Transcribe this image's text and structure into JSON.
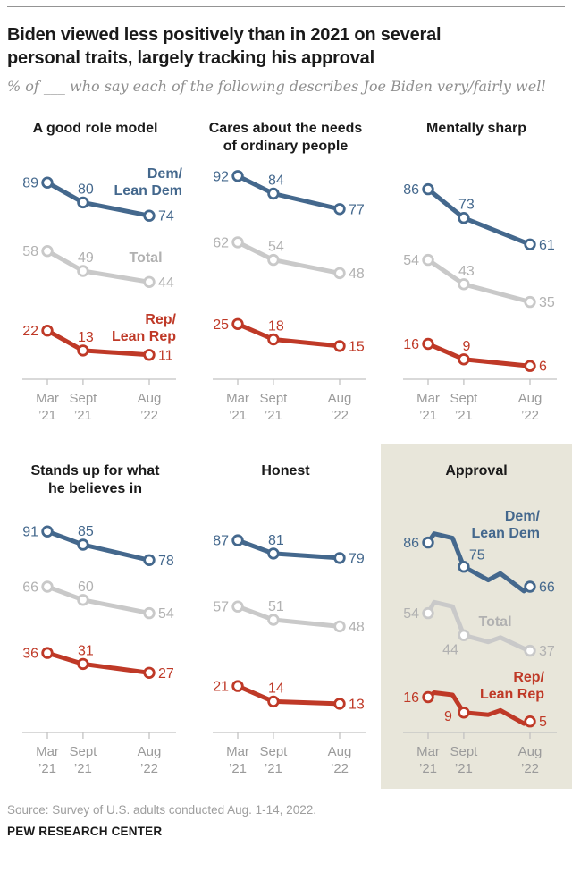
{
  "header": {
    "title": "Biden viewed less positively than in 2021 on several\npersonal traits, largely tracking his approval",
    "subtitle": "% of ___ who say each of the following describes Joe Biden very/fairly well"
  },
  "footer": {
    "source": "Source: Survey of U.S. adults conducted Aug. 1-14, 2022.",
    "brand": "PEW RESEARCH CENTER"
  },
  "colors": {
    "dem": {
      "line": "#44688d",
      "text": "#44688d"
    },
    "total": {
      "line": "#c9c9c9",
      "text": "#b1b1b1"
    },
    "rep": {
      "line": "#bf3927",
      "text": "#bf3927"
    },
    "axis": "#c2c2c2",
    "tick_text": "#9b9b9b",
    "approval_bg": "#e8e6da"
  },
  "legend": {
    "dem": [
      "Dem/",
      "Lean Dem"
    ],
    "total": [
      "Total"
    ],
    "rep": [
      "Rep/",
      "Lean Rep"
    ]
  },
  "axes": {
    "ylim": [
      0,
      100
    ],
    "x_categories": [
      "Mar '21",
      "Sept '21",
      "Aug '22"
    ],
    "x_ticks": [
      {
        "t": 0,
        "line1": "Mar",
        "line2": "’21"
      },
      {
        "t": 0.35,
        "line1": "Sept",
        "line2": "’21"
      },
      {
        "t": 1,
        "line1": "Aug",
        "line2": "’22"
      }
    ]
  },
  "chart_data": [
    {
      "type": "line",
      "title": "A good role model",
      "highlighted": false,
      "show_legend": true,
      "series": [
        {
          "name": "Dem/Lean Dem",
          "color_key": "dem",
          "points": [
            [
              0,
              89
            ],
            [
              0.35,
              80
            ],
            [
              1,
              74
            ]
          ],
          "labels": [
            {
              "i": 0,
              "pos": "left"
            },
            {
              "i": 1,
              "pos": "above"
            },
            {
              "i": 2,
              "pos": "right"
            }
          ]
        },
        {
          "name": "Total",
          "color_key": "total",
          "points": [
            [
              0,
              58
            ],
            [
              0.35,
              49
            ],
            [
              1,
              44
            ]
          ],
          "labels": [
            {
              "i": 0,
              "pos": "left"
            },
            {
              "i": 1,
              "pos": "above"
            },
            {
              "i": 2,
              "pos": "right"
            }
          ]
        },
        {
          "name": "Rep/Lean Rep",
          "color_key": "rep",
          "points": [
            [
              0,
              22
            ],
            [
              0.35,
              13
            ],
            [
              1,
              11
            ]
          ],
          "labels": [
            {
              "i": 0,
              "pos": "left"
            },
            {
              "i": 1,
              "pos": "above"
            },
            {
              "i": 2,
              "pos": "right"
            }
          ]
        }
      ]
    },
    {
      "type": "line",
      "title": "Cares about the needs\nof ordinary people",
      "highlighted": false,
      "show_legend": false,
      "series": [
        {
          "name": "Dem/Lean Dem",
          "color_key": "dem",
          "points": [
            [
              0,
              92
            ],
            [
              0.35,
              84
            ],
            [
              1,
              77
            ]
          ],
          "labels": [
            {
              "i": 0,
              "pos": "left"
            },
            {
              "i": 1,
              "pos": "above"
            },
            {
              "i": 2,
              "pos": "right"
            }
          ]
        },
        {
          "name": "Total",
          "color_key": "total",
          "points": [
            [
              0,
              62
            ],
            [
              0.35,
              54
            ],
            [
              1,
              48
            ]
          ],
          "labels": [
            {
              "i": 0,
              "pos": "left"
            },
            {
              "i": 1,
              "pos": "above"
            },
            {
              "i": 2,
              "pos": "right"
            }
          ]
        },
        {
          "name": "Rep/Lean Rep",
          "color_key": "rep",
          "points": [
            [
              0,
              25
            ],
            [
              0.35,
              18
            ],
            [
              1,
              15
            ]
          ],
          "labels": [
            {
              "i": 0,
              "pos": "left"
            },
            {
              "i": 1,
              "pos": "above"
            },
            {
              "i": 2,
              "pos": "right"
            }
          ]
        }
      ]
    },
    {
      "type": "line",
      "title": "Mentally sharp",
      "highlighted": false,
      "show_legend": false,
      "series": [
        {
          "name": "Dem/Lean Dem",
          "color_key": "dem",
          "points": [
            [
              0,
              86
            ],
            [
              0.35,
              73
            ],
            [
              1,
              61
            ]
          ],
          "labels": [
            {
              "i": 0,
              "pos": "left"
            },
            {
              "i": 1,
              "pos": "above"
            },
            {
              "i": 2,
              "pos": "right"
            }
          ]
        },
        {
          "name": "Total",
          "color_key": "total",
          "points": [
            [
              0,
              54
            ],
            [
              0.35,
              43
            ],
            [
              1,
              35
            ]
          ],
          "labels": [
            {
              "i": 0,
              "pos": "left"
            },
            {
              "i": 1,
              "pos": "above"
            },
            {
              "i": 2,
              "pos": "right"
            }
          ]
        },
        {
          "name": "Rep/Lean Rep",
          "color_key": "rep",
          "points": [
            [
              0,
              16
            ],
            [
              0.35,
              9
            ],
            [
              1,
              6
            ]
          ],
          "labels": [
            {
              "i": 0,
              "pos": "left"
            },
            {
              "i": 1,
              "pos": "above"
            },
            {
              "i": 2,
              "pos": "right"
            }
          ]
        }
      ]
    },
    {
      "type": "line",
      "title": "Stands up for what\nhe believes in",
      "highlighted": false,
      "show_legend": false,
      "series": [
        {
          "name": "Dem/Lean Dem",
          "color_key": "dem",
          "points": [
            [
              0,
              91
            ],
            [
              0.35,
              85
            ],
            [
              1,
              78
            ]
          ],
          "labels": [
            {
              "i": 0,
              "pos": "left"
            },
            {
              "i": 1,
              "pos": "above"
            },
            {
              "i": 2,
              "pos": "right"
            }
          ]
        },
        {
          "name": "Total",
          "color_key": "total",
          "points": [
            [
              0,
              66
            ],
            [
              0.35,
              60
            ],
            [
              1,
              54
            ]
          ],
          "labels": [
            {
              "i": 0,
              "pos": "left"
            },
            {
              "i": 1,
              "pos": "above"
            },
            {
              "i": 2,
              "pos": "right"
            }
          ]
        },
        {
          "name": "Rep/Lean Rep",
          "color_key": "rep",
          "points": [
            [
              0,
              36
            ],
            [
              0.35,
              31
            ],
            [
              1,
              27
            ]
          ],
          "labels": [
            {
              "i": 0,
              "pos": "left"
            },
            {
              "i": 1,
              "pos": "above"
            },
            {
              "i": 2,
              "pos": "right"
            }
          ]
        }
      ]
    },
    {
      "type": "line",
      "title": "Honest",
      "highlighted": false,
      "show_legend": false,
      "series": [
        {
          "name": "Dem/Lean Dem",
          "color_key": "dem",
          "points": [
            [
              0,
              87
            ],
            [
              0.35,
              81
            ],
            [
              1,
              79
            ]
          ],
          "labels": [
            {
              "i": 0,
              "pos": "left"
            },
            {
              "i": 1,
              "pos": "above"
            },
            {
              "i": 2,
              "pos": "right"
            }
          ]
        },
        {
          "name": "Total",
          "color_key": "total",
          "points": [
            [
              0,
              57
            ],
            [
              0.35,
              51
            ],
            [
              1,
              48
            ]
          ],
          "labels": [
            {
              "i": 0,
              "pos": "left"
            },
            {
              "i": 1,
              "pos": "above"
            },
            {
              "i": 2,
              "pos": "right"
            }
          ]
        },
        {
          "name": "Rep/Lean Rep",
          "color_key": "rep",
          "points": [
            [
              0,
              21
            ],
            [
              0.35,
              14
            ],
            [
              1,
              13
            ]
          ],
          "labels": [
            {
              "i": 0,
              "pos": "left"
            },
            {
              "i": 1,
              "pos": "above"
            },
            {
              "i": 2,
              "pos": "right"
            }
          ]
        }
      ]
    },
    {
      "type": "line",
      "title": "Approval",
      "highlighted": true,
      "show_legend": true,
      "series": [
        {
          "name": "Dem/Lean Dem",
          "color_key": "dem",
          "points": [
            [
              0,
              86
            ],
            [
              0.06,
              90
            ],
            [
              0.24,
              88
            ],
            [
              0.35,
              75
            ],
            [
              0.59,
              69
            ],
            [
              0.71,
              72
            ],
            [
              0.94,
              64
            ],
            [
              1,
              66
            ]
          ],
          "labels": [
            {
              "i": 0,
              "pos": "left"
            },
            {
              "i": 3,
              "pos": "above-right"
            },
            {
              "i": 7,
              "pos": "right"
            }
          ]
        },
        {
          "name": "Total",
          "color_key": "total",
          "points": [
            [
              0,
              54
            ],
            [
              0.06,
              59
            ],
            [
              0.24,
              57
            ],
            [
              0.35,
              44
            ],
            [
              0.59,
              41
            ],
            [
              0.71,
              43
            ],
            [
              0.94,
              38
            ],
            [
              1,
              37
            ]
          ],
          "labels": [
            {
              "i": 0,
              "pos": "left"
            },
            {
              "i": 3,
              "pos": "below-left"
            },
            {
              "i": 7,
              "pos": "right"
            }
          ]
        },
        {
          "name": "Rep/Lean Rep",
          "color_key": "rep",
          "points": [
            [
              0,
              16
            ],
            [
              0.06,
              18
            ],
            [
              0.24,
              17
            ],
            [
              0.35,
              9
            ],
            [
              0.59,
              8
            ],
            [
              0.71,
              10
            ],
            [
              0.94,
              4
            ],
            [
              1,
              5
            ]
          ],
          "labels": [
            {
              "i": 0,
              "pos": "left"
            },
            {
              "i": 3,
              "pos": "left-below"
            },
            {
              "i": 7,
              "pos": "right"
            }
          ]
        }
      ]
    }
  ]
}
